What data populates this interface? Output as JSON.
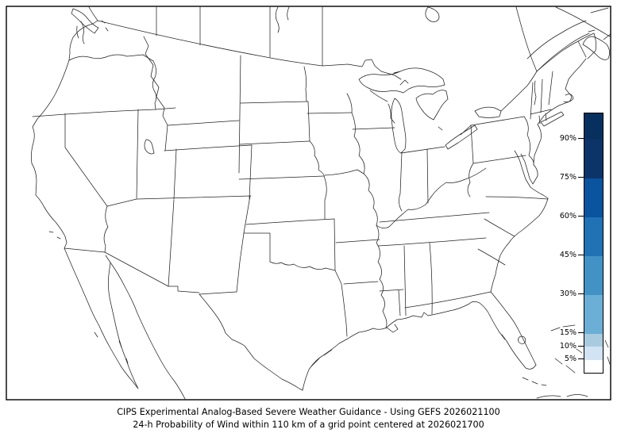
{
  "figure": {
    "title_line1": "CIPS Experimental Analog-Based Severe Weather Guidance - Using GEFS 2026021100",
    "title_line2": "24-h Probability of Wind within 110 km of a grid point centered at 2026021700"
  },
  "colorbar": {
    "unit": "%",
    "range": [
      0,
      100
    ],
    "ticks": [
      {
        "value": 5,
        "label": "5%"
      },
      {
        "value": 10,
        "label": "10%"
      },
      {
        "value": 15,
        "label": "15%"
      },
      {
        "value": 30,
        "label": "30%"
      },
      {
        "value": 45,
        "label": "45%"
      },
      {
        "value": 60,
        "label": "60%"
      },
      {
        "value": 75,
        "label": "75%"
      },
      {
        "value": 90,
        "label": "90%"
      }
    ],
    "segments": [
      {
        "from": 0,
        "to": 5,
        "color": "#ffffff"
      },
      {
        "from": 5,
        "to": 10,
        "color": "#d2e3f3"
      },
      {
        "from": 10,
        "to": 15,
        "color": "#a8cbe0"
      },
      {
        "from": 15,
        "to": 30,
        "color": "#6baed6"
      },
      {
        "from": 30,
        "to": 45,
        "color": "#4292c6"
      },
      {
        "from": 45,
        "to": 60,
        "color": "#2171b5"
      },
      {
        "from": 60,
        "to": 75,
        "color": "#0a539e"
      },
      {
        "from": 75,
        "to": 90,
        "color": "#0d3468"
      },
      {
        "from": 90,
        "to": 100,
        "color": "#08305f"
      }
    ]
  },
  "chart_data": {
    "type": "map",
    "region": "Contiguous United States with southern Canada, northern Mexico and nearby islands (state/province outline map)",
    "probability_shading": "none visible (map area is entirely unshaded / 0%)",
    "colorbar_levels_percent": [
      5,
      10,
      15,
      30,
      45,
      60,
      75,
      90
    ],
    "legend_position": "right",
    "frame": "black rectangular border around map"
  }
}
